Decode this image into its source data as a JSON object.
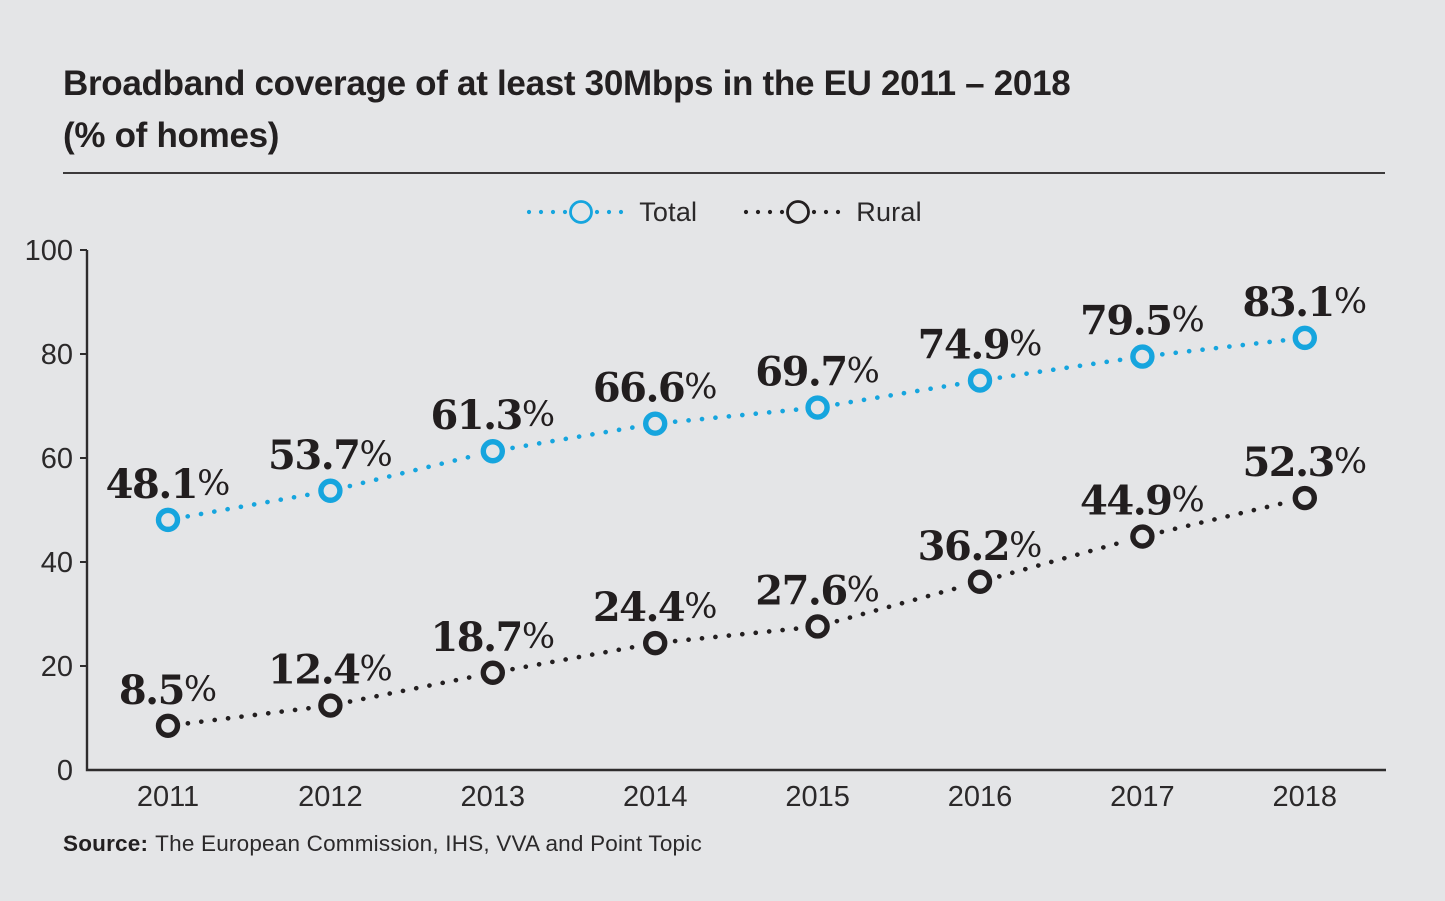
{
  "header": {
    "title_line1": "Broadband coverage of at least 30Mbps in the EU 2011 – 2018",
    "title_line2": "(% of homes)"
  },
  "source": {
    "label": "Source:",
    "text": "The European Commission, IHS, VVA and Point Topic"
  },
  "colors": {
    "background": "#e4e5e7",
    "ink": "#231f20",
    "accent_blue": "#16a5de"
  },
  "chart_data": {
    "type": "line",
    "title": "Broadband coverage of at least 30Mbps in the EU 2011 – 2018 (% of homes)",
    "categories": [
      "2011",
      "2012",
      "2013",
      "2014",
      "2015",
      "2016",
      "2017",
      "2018"
    ],
    "series": [
      {
        "name": "Total",
        "color": "#16a5de",
        "values": [
          48.1,
          53.7,
          61.3,
          66.6,
          69.7,
          74.9,
          79.5,
          83.1
        ]
      },
      {
        "name": "Rural",
        "color": "#231f20",
        "values": [
          8.5,
          12.4,
          18.7,
          24.4,
          27.6,
          36.2,
          44.9,
          52.3
        ]
      }
    ],
    "data_label_suffix": "%",
    "xlabel": "",
    "ylabel": "",
    "ylim": [
      0,
      100
    ],
    "yticks": [
      0,
      20,
      40,
      60,
      80,
      100
    ],
    "line_style": "dotted",
    "marker": "open-circle",
    "legend_position": "top-center",
    "grid": false
  }
}
